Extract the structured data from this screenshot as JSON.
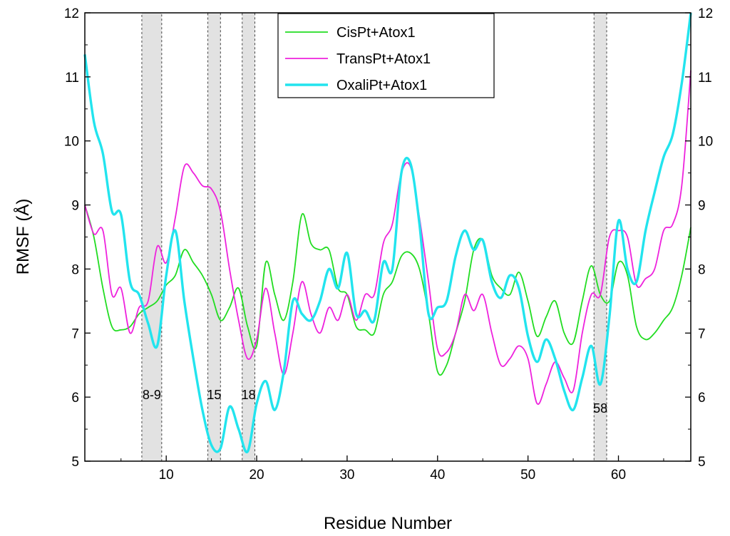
{
  "chart_data": {
    "type": "line",
    "xlabel": "Residue Number",
    "ylabel": "RMSF (Å)",
    "xlim": [
      1,
      68
    ],
    "ylim": [
      5,
      12
    ],
    "x_ticks": [
      10,
      20,
      30,
      40,
      50,
      60
    ],
    "y_ticks": [
      5,
      6,
      7,
      8,
      9,
      10,
      11,
      12
    ],
    "right_axis_mirrors_left": true,
    "grid": false,
    "legend_position": "top-center",
    "highlight_regions": [
      {
        "label": "8-9",
        "x_start": 7.3,
        "x_end": 9.5
      },
      {
        "label": "15",
        "x_start": 14.6,
        "x_end": 16.0
      },
      {
        "label": "18",
        "x_start": 18.4,
        "x_end": 19.8
      },
      {
        "label": "58",
        "x_start": 57.3,
        "x_end": 58.7
      }
    ],
    "series": [
      {
        "name": "CisPt+Atox1",
        "color": "#22dd22",
        "x": [
          1,
          2,
          3,
          4,
          5,
          6,
          7,
          8,
          9,
          10,
          11,
          12,
          13,
          14,
          15,
          16,
          17,
          18,
          19,
          20,
          21,
          22,
          23,
          24,
          25,
          26,
          27,
          28,
          29,
          30,
          31,
          32,
          33,
          34,
          35,
          36,
          37,
          38,
          39,
          40,
          41,
          42,
          43,
          44,
          45,
          46,
          47,
          48,
          49,
          50,
          51,
          52,
          53,
          54,
          55,
          56,
          57,
          58,
          59,
          60,
          61,
          62,
          63,
          64,
          65,
          66,
          67,
          68
        ],
        "values": [
          9.0,
          8.5,
          7.7,
          7.1,
          7.05,
          7.1,
          7.3,
          7.4,
          7.5,
          7.75,
          7.9,
          8.3,
          8.1,
          7.9,
          7.6,
          7.2,
          7.4,
          7.7,
          7.1,
          6.8,
          8.1,
          7.6,
          7.2,
          7.8,
          8.85,
          8.4,
          8.3,
          8.3,
          7.7,
          7.6,
          7.1,
          7.05,
          7.0,
          7.6,
          7.8,
          8.2,
          8.25,
          8.0,
          7.3,
          6.4,
          6.5,
          7.0,
          7.5,
          8.3,
          8.45,
          7.9,
          7.7,
          7.6,
          7.95,
          7.5,
          6.95,
          7.25,
          7.5,
          7.0,
          6.85,
          7.5,
          8.05,
          7.6,
          7.5,
          8.1,
          7.9,
          7.1,
          6.9,
          7.0,
          7.2,
          7.4,
          7.9,
          8.65
        ]
      },
      {
        "name": "TransPt+Atox1",
        "color": "#ee22dd",
        "x": [
          1,
          2,
          3,
          4,
          5,
          6,
          7,
          8,
          9,
          10,
          11,
          12,
          13,
          14,
          15,
          16,
          17,
          18,
          19,
          20,
          21,
          22,
          23,
          24,
          25,
          26,
          27,
          28,
          29,
          30,
          31,
          32,
          33,
          34,
          35,
          36,
          37,
          38,
          39,
          40,
          41,
          42,
          43,
          44,
          45,
          46,
          47,
          48,
          49,
          50,
          51,
          52,
          53,
          54,
          55,
          56,
          57,
          58,
          59,
          60,
          61,
          62,
          63,
          64,
          65,
          66,
          67,
          68
        ],
        "values": [
          9.0,
          8.55,
          8.6,
          7.6,
          7.7,
          7.0,
          7.4,
          7.5,
          8.35,
          8.1,
          8.8,
          9.6,
          9.5,
          9.3,
          9.25,
          8.9,
          8.0,
          7.2,
          6.6,
          6.9,
          7.7,
          7.0,
          6.35,
          7.0,
          7.8,
          7.3,
          7.0,
          7.4,
          7.2,
          7.6,
          7.2,
          7.6,
          7.6,
          8.4,
          8.7,
          9.5,
          9.6,
          8.8,
          7.8,
          6.75,
          6.7,
          7.0,
          7.6,
          7.35,
          7.6,
          7.0,
          6.5,
          6.6,
          6.8,
          6.6,
          5.9,
          6.2,
          6.55,
          6.3,
          6.1,
          7.0,
          7.6,
          7.6,
          8.5,
          8.6,
          8.5,
          7.75,
          7.85,
          8.0,
          8.6,
          8.7,
          9.3,
          11.1
        ]
      },
      {
        "name": "OxaliPt+Atox1",
        "color": "#22e4ee",
        "x": [
          1,
          2,
          3,
          4,
          5,
          6,
          7,
          8,
          9,
          10,
          11,
          12,
          13,
          14,
          15,
          16,
          17,
          18,
          19,
          20,
          21,
          22,
          23,
          24,
          25,
          26,
          27,
          28,
          29,
          30,
          31,
          32,
          33,
          34,
          35,
          36,
          37,
          38,
          39,
          40,
          41,
          42,
          43,
          44,
          45,
          46,
          47,
          48,
          49,
          50,
          51,
          52,
          53,
          54,
          55,
          56,
          57,
          58,
          59,
          60,
          61,
          62,
          63,
          64,
          65,
          66,
          67,
          68
        ],
        "values": [
          11.35,
          10.3,
          9.8,
          8.9,
          8.85,
          7.8,
          7.6,
          7.15,
          6.8,
          7.9,
          8.6,
          7.5,
          6.6,
          5.8,
          5.25,
          5.2,
          5.85,
          5.5,
          5.15,
          5.9,
          6.25,
          5.8,
          6.4,
          7.5,
          7.3,
          7.2,
          7.5,
          8.0,
          7.7,
          8.25,
          7.3,
          7.35,
          7.2,
          8.1,
          8.0,
          9.5,
          9.65,
          8.7,
          7.3,
          7.4,
          7.5,
          8.2,
          8.6,
          8.3,
          8.45,
          7.8,
          7.55,
          7.9,
          7.7,
          6.95,
          6.55,
          6.9,
          6.6,
          6.1,
          5.8,
          6.3,
          6.8,
          6.2,
          7.25,
          8.75,
          8.0,
          7.8,
          8.6,
          9.2,
          9.75,
          10.1,
          10.9,
          12.0
        ]
      }
    ]
  }
}
